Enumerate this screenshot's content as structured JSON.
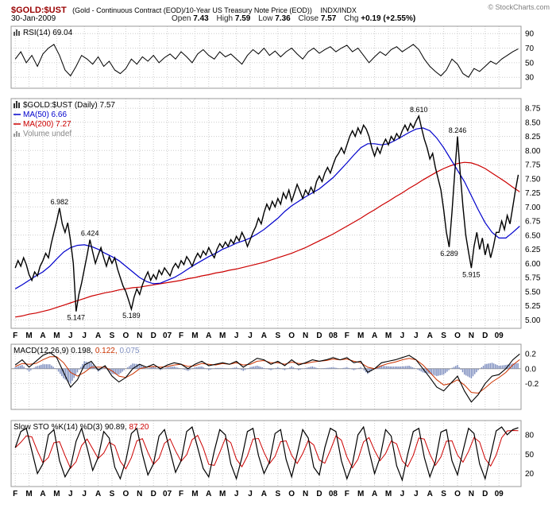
{
  "header": {
    "symbol": "$GOLD:$UST",
    "description": "(Gold - Continuous Contract (EOD)/10-Year US Treasury Note Price (EOD))",
    "exchange": "INDX/INDX",
    "copyright": "© StockCharts.com",
    "date": "30-Jan-2009",
    "quote": [
      {
        "label": "Open",
        "value": "7.43"
      },
      {
        "label": "High",
        "value": "7.59"
      },
      {
        "label": "Low",
        "value": "7.36"
      },
      {
        "label": "Close",
        "value": "7.57"
      },
      {
        "label": "Chg",
        "value": "+0.19 (+2.55%)"
      }
    ]
  },
  "panels": {
    "rsi": {
      "legend": "RSI(14) 69.04"
    },
    "price": {
      "symbol_row": "$GOLD:$UST (Daily) 7.57",
      "ma50_row": "MA(50) 6.66",
      "ma200_row": "MA(200) 7.27",
      "volume_row": "Volume undef"
    },
    "macd": {
      "name": "MACD(12,26,9)",
      "v1": "0.198,",
      "v2": "0.122,",
      "v3": "0.075"
    },
    "sto": {
      "name": "Slow STO %K(14) %D(3)",
      "v1": "90.89,",
      "v2": "87.20"
    }
  },
  "colors": {
    "symbol": "#990000",
    "price": "#000000",
    "ma50": "#0000cc",
    "ma200": "#cc0000",
    "macd_line": "#000000",
    "macd_signal": "#cc3300",
    "macd_hist": "#8090c0",
    "sto_k": "#000000",
    "sto_d": "#cc0000",
    "volume_text": "#888888",
    "grid": "#cccccc",
    "panel_border": "#999999"
  },
  "x_axis": {
    "note": "x values are months since the first tick (F = Feb 2006); bold 2-char labels are year starts",
    "labels": [
      {
        "m": 0,
        "t": "F"
      },
      {
        "m": 1,
        "t": "M"
      },
      {
        "m": 2,
        "t": "A"
      },
      {
        "m": 3,
        "t": "M"
      },
      {
        "m": 4,
        "t": "J"
      },
      {
        "m": 5,
        "t": "J"
      },
      {
        "m": 6,
        "t": "A"
      },
      {
        "m": 7,
        "t": "S"
      },
      {
        "m": 8,
        "t": "O"
      },
      {
        "m": 9,
        "t": "N"
      },
      {
        "m": 10,
        "t": "D"
      },
      {
        "m": 11,
        "t": "07",
        "year": true
      },
      {
        "m": 12,
        "t": "F"
      },
      {
        "m": 13,
        "t": "M"
      },
      {
        "m": 14,
        "t": "A"
      },
      {
        "m": 15,
        "t": "M"
      },
      {
        "m": 16,
        "t": "J"
      },
      {
        "m": 17,
        "t": "J"
      },
      {
        "m": 18,
        "t": "A"
      },
      {
        "m": 19,
        "t": "S"
      },
      {
        "m": 20,
        "t": "O"
      },
      {
        "m": 21,
        "t": "N"
      },
      {
        "m": 22,
        "t": "D"
      },
      {
        "m": 23,
        "t": "08",
        "year": true
      },
      {
        "m": 24,
        "t": "F"
      },
      {
        "m": 25,
        "t": "M"
      },
      {
        "m": 26,
        "t": "A"
      },
      {
        "m": 27,
        "t": "M"
      },
      {
        "m": 28,
        "t": "J"
      },
      {
        "m": 29,
        "t": "J"
      },
      {
        "m": 30,
        "t": "A"
      },
      {
        "m": 31,
        "t": "S"
      },
      {
        "m": 32,
        "t": "O"
      },
      {
        "m": 33,
        "t": "N"
      },
      {
        "m": 34,
        "t": "D"
      },
      {
        "m": 35,
        "t": "09",
        "year": true
      }
    ]
  },
  "chart_data": [
    {
      "id": "rsi",
      "type": "line",
      "title": "RSI(14)",
      "current_value": 69.04,
      "ylim": [
        15,
        100
      ],
      "yticks": [
        {
          "v": 90,
          "label": "90"
        },
        {
          "v": 70,
          "label": "70"
        },
        {
          "v": 50,
          "label": "50"
        },
        {
          "v": 30,
          "label": "30"
        }
      ],
      "series": [
        {
          "name": "RSI",
          "color": "#000000",
          "x0": 0,
          "dx": 0.4,
          "values": [
            55,
            65,
            50,
            60,
            45,
            62,
            70,
            75,
            60,
            40,
            32,
            45,
            60,
            55,
            48,
            58,
            45,
            52,
            40,
            35,
            42,
            55,
            48,
            58,
            52,
            60,
            50,
            57,
            62,
            55,
            65,
            58,
            50,
            62,
            68,
            60,
            55,
            65,
            58,
            62,
            55,
            48,
            60,
            68,
            62,
            70,
            60,
            66,
            58,
            65,
            70,
            62,
            55,
            65,
            70,
            63,
            68,
            72,
            65,
            70,
            74,
            65,
            70,
            60,
            50,
            58,
            65,
            60,
            68,
            72,
            65,
            70,
            75,
            68,
            55,
            45,
            38,
            32,
            40,
            55,
            48,
            35,
            30,
            42,
            38,
            45,
            52,
            48,
            55,
            60,
            65,
            69
          ]
        }
      ]
    },
    {
      "id": "price",
      "type": "line",
      "title": "$GOLD:$UST (Daily)",
      "current_value": 7.57,
      "ma50_value": 6.66,
      "ma200_value": 7.27,
      "ylim": [
        4.85,
        8.92
      ],
      "yticks": [
        {
          "v": 8.75,
          "label": "8.75"
        },
        {
          "v": 8.5,
          "label": "8.50"
        },
        {
          "v": 8.25,
          "label": "8.25"
        },
        {
          "v": 8.0,
          "label": "8.00"
        },
        {
          "v": 7.75,
          "label": "7.75"
        },
        {
          "v": 7.5,
          "label": "7.50"
        },
        {
          "v": 7.25,
          "label": "7.25"
        },
        {
          "v": 7.0,
          "label": "7.00"
        },
        {
          "v": 6.75,
          "label": "6.75"
        },
        {
          "v": 6.5,
          "label": "6.50"
        },
        {
          "v": 6.25,
          "label": "6.25"
        },
        {
          "v": 6.0,
          "label": "6.00"
        },
        {
          "v": 5.75,
          "label": "5.75"
        },
        {
          "v": 5.5,
          "label": "5.50"
        },
        {
          "v": 5.25,
          "label": "5.25"
        },
        {
          "v": 5.0,
          "label": "5.00"
        }
      ],
      "series": [
        {
          "name": "MA200",
          "color": "#cc0000",
          "x0": 0,
          "dx": 0.5,
          "values": [
            5.05,
            5.07,
            5.1,
            5.12,
            5.15,
            5.18,
            5.22,
            5.26,
            5.3,
            5.34,
            5.38,
            5.42,
            5.45,
            5.48,
            5.5,
            5.53,
            5.55,
            5.57,
            5.58,
            5.6,
            5.62,
            5.64,
            5.66,
            5.68,
            5.7,
            5.73,
            5.75,
            5.78,
            5.8,
            5.83,
            5.85,
            5.88,
            5.9,
            5.93,
            5.96,
            5.99,
            6.02,
            6.06,
            6.1,
            6.14,
            6.18,
            6.23,
            6.28,
            6.34,
            6.4,
            6.46,
            6.52,
            6.59,
            6.66,
            6.73,
            6.8,
            6.88,
            6.95,
            7.03,
            7.1,
            7.18,
            7.25,
            7.33,
            7.4,
            7.48,
            7.55,
            7.62,
            7.68,
            7.73,
            7.77,
            7.79,
            7.78,
            7.74,
            7.68,
            7.6,
            7.52,
            7.44,
            7.35,
            7.27
          ]
        },
        {
          "name": "MA50",
          "color": "#0000cc",
          "x0": 0,
          "dx": 0.5,
          "values": [
            5.55,
            5.62,
            5.7,
            5.78,
            5.85,
            5.95,
            6.08,
            6.2,
            6.28,
            6.32,
            6.33,
            6.3,
            6.25,
            6.18,
            6.12,
            6.05,
            5.95,
            5.85,
            5.75,
            5.68,
            5.64,
            5.65,
            5.7,
            5.75,
            5.82,
            5.9,
            5.98,
            6.05,
            6.12,
            6.18,
            6.25,
            6.3,
            6.36,
            6.4,
            6.45,
            6.52,
            6.6,
            6.7,
            6.8,
            6.92,
            7.02,
            7.1,
            7.18,
            7.25,
            7.32,
            7.42,
            7.52,
            7.65,
            7.78,
            7.92,
            8.05,
            8.12,
            8.12,
            8.1,
            8.12,
            8.18,
            8.25,
            8.32,
            8.38,
            8.4,
            8.35,
            8.22,
            8.05,
            7.85,
            7.65,
            7.45,
            7.2,
            6.95,
            6.72,
            6.55,
            6.45,
            6.45,
            6.55,
            6.66
          ]
        },
        {
          "name": "PRICE",
          "color": "#000000",
          "x0": 0,
          "dx": 0.2,
          "values": [
            5.92,
            6.05,
            5.95,
            6.1,
            5.98,
            5.8,
            5.7,
            5.85,
            5.78,
            5.95,
            6.05,
            6.18,
            6.1,
            6.35,
            6.55,
            6.75,
            6.98,
            6.7,
            6.55,
            6.72,
            6.4,
            6.0,
            5.15,
            5.45,
            5.65,
            5.9,
            6.15,
            6.42,
            6.2,
            6.0,
            6.15,
            6.28,
            6.1,
            5.95,
            6.12,
            6.0,
            6.1,
            5.9,
            5.75,
            5.6,
            5.5,
            5.35,
            5.19,
            5.4,
            5.55,
            5.45,
            5.62,
            5.75,
            5.85,
            5.7,
            5.8,
            5.72,
            5.88,
            5.8,
            5.92,
            5.85,
            5.78,
            5.92,
            6.0,
            5.92,
            6.05,
            5.98,
            6.12,
            6.05,
            5.95,
            6.08,
            6.18,
            6.1,
            6.22,
            6.15,
            6.28,
            6.18,
            6.1,
            6.25,
            6.35,
            6.28,
            6.38,
            6.3,
            6.42,
            6.35,
            6.48,
            6.4,
            6.55,
            6.45,
            6.3,
            6.42,
            6.55,
            6.65,
            6.8,
            6.7,
            6.9,
            7.05,
            6.95,
            7.1,
            7.0,
            7.15,
            7.05,
            7.25,
            7.15,
            7.3,
            7.1,
            7.25,
            7.4,
            7.28,
            7.15,
            7.3,
            7.22,
            7.35,
            7.25,
            7.45,
            7.55,
            7.45,
            7.6,
            7.7,
            7.6,
            7.75,
            7.88,
            7.95,
            8.05,
            7.95,
            8.1,
            8.25,
            8.35,
            8.25,
            8.4,
            8.3,
            8.45,
            8.38,
            8.25,
            8.05,
            7.9,
            8.05,
            7.95,
            8.1,
            8.2,
            8.1,
            8.25,
            8.18,
            8.3,
            8.22,
            8.35,
            8.45,
            8.35,
            8.48,
            8.4,
            8.52,
            8.61,
            8.4,
            8.2,
            8.05,
            7.85,
            7.95,
            7.7,
            7.5,
            7.3,
            6.95,
            6.55,
            6.29,
            6.9,
            7.6,
            8.25,
            7.6,
            7.0,
            6.5,
            6.2,
            5.92,
            6.3,
            6.55,
            6.25,
            6.45,
            6.15,
            6.35,
            6.1,
            6.3,
            6.55,
            6.55,
            6.75,
            6.6,
            6.85,
            6.7,
            7.0,
            7.3,
            7.57
          ]
        }
      ],
      "annotations": [
        {
          "t": "6.982",
          "x": 3.2,
          "v": 6.98,
          "below": false
        },
        {
          "t": "6.424",
          "x": 5.4,
          "v": 6.42,
          "below": false
        },
        {
          "t": "5.147",
          "x": 4.4,
          "v": 5.15,
          "below": true
        },
        {
          "t": "5.189",
          "x": 8.4,
          "v": 5.19,
          "below": true
        },
        {
          "t": "8.610",
          "x": 29.2,
          "v": 8.61,
          "below": false
        },
        {
          "t": "8.246",
          "x": 32.0,
          "v": 8.246,
          "below": false
        },
        {
          "t": "6.289",
          "x": 31.4,
          "v": 6.289,
          "below": true
        },
        {
          "t": "5.915",
          "x": 33.0,
          "v": 5.915,
          "below": true
        }
      ]
    },
    {
      "id": "macd",
      "type": "line",
      "title": "MACD(12,26,9)",
      "values_text": "0.198, 0.122, 0.075",
      "ylim": [
        -0.55,
        0.33
      ],
      "hist_color": "#8090c0",
      "yticks": [
        {
          "v": 0.2,
          "label": "0.2"
        },
        {
          "v": 0,
          "label": "0.0"
        },
        {
          "v": -0.2,
          "label": "-0.2"
        }
      ],
      "series": [
        {
          "name": "MACD",
          "color": "#000000",
          "x0": 0,
          "dx": 0.5,
          "values": [
            0.05,
            0.12,
            0.02,
            0.1,
            0.18,
            0.22,
            0.15,
            -0.05,
            -0.25,
            -0.15,
            0.05,
            0.1,
            -0.02,
            0.04,
            -0.1,
            -0.18,
            -0.12,
            0.0,
            0.06,
            0.02,
            0.06,
            0.0,
            0.05,
            0.08,
            0.06,
            0.0,
            0.06,
            0.1,
            0.04,
            0.06,
            0.08,
            0.06,
            0.1,
            0.02,
            0.08,
            0.14,
            0.12,
            0.06,
            0.1,
            0.04,
            0.12,
            0.05,
            0.08,
            0.12,
            0.1,
            0.12,
            0.15,
            0.12,
            0.15,
            0.08,
            0.1,
            -0.05,
            0.0,
            0.08,
            0.1,
            0.12,
            0.15,
            0.18,
            0.12,
            0.0,
            -0.12,
            -0.25,
            -0.3,
            -0.2,
            -0.1,
            -0.3,
            -0.45,
            -0.35,
            -0.2,
            -0.1,
            -0.08,
            0.0,
            0.12,
            0.198
          ]
        },
        {
          "name": "Signal",
          "color": "#cc3300",
          "x0": 0,
          "dx": 0.5,
          "values": [
            0.03,
            0.07,
            0.06,
            0.07,
            0.12,
            0.16,
            0.16,
            0.08,
            -0.05,
            -0.1,
            -0.05,
            0.02,
            0.02,
            0.02,
            -0.03,
            -0.1,
            -0.12,
            -0.07,
            0.0,
            0.02,
            0.03,
            0.02,
            0.03,
            0.05,
            0.06,
            0.03,
            0.04,
            0.07,
            0.06,
            0.05,
            0.07,
            0.06,
            0.08,
            0.05,
            0.06,
            0.1,
            0.11,
            0.08,
            0.08,
            0.06,
            0.09,
            0.07,
            0.07,
            0.09,
            0.1,
            0.11,
            0.13,
            0.12,
            0.13,
            0.1,
            0.08,
            0.02,
            0.0,
            0.04,
            0.07,
            0.09,
            0.12,
            0.14,
            0.12,
            0.05,
            -0.05,
            -0.15,
            -0.22,
            -0.2,
            -0.15,
            -0.22,
            -0.32,
            -0.33,
            -0.26,
            -0.18,
            -0.12,
            -0.05,
            0.05,
            0.122
          ]
        }
      ]
    },
    {
      "id": "sto",
      "type": "line",
      "title": "Slow STO %K(14) %D(3)",
      "values_text": "90.89, 87.20",
      "ylim": [
        0,
        102
      ],
      "d_color": "#cc0000",
      "yticks": [
        {
          "v": 80,
          "label": "80"
        },
        {
          "v": 50,
          "label": "50"
        },
        {
          "v": 20,
          "label": "20"
        }
      ],
      "series": [
        {
          "name": "K",
          "color": "#000000",
          "x0": 0,
          "dx": 0.4,
          "values": [
            60,
            85,
            90,
            55,
            20,
            35,
            80,
            88,
            40,
            15,
            30,
            70,
            90,
            60,
            25,
            45,
            85,
            75,
            30,
            12,
            40,
            82,
            90,
            50,
            18,
            35,
            78,
            88,
            55,
            22,
            40,
            85,
            92,
            60,
            28,
            15,
            55,
            88,
            80,
            35,
            12,
            45,
            85,
            90,
            48,
            20,
            38,
            82,
            88,
            42,
            15,
            50,
            88,
            75,
            30,
            18,
            60,
            90,
            85,
            40,
            12,
            35,
            80,
            92,
            55,
            20,
            45,
            88,
            78,
            32,
            10,
            50,
            85,
            90,
            45,
            15,
            38,
            84,
            88,
            40,
            18,
            55,
            90,
            82,
            35,
            12,
            48,
            86,
            92,
            80,
            88,
            91
          ]
        }
      ]
    }
  ]
}
